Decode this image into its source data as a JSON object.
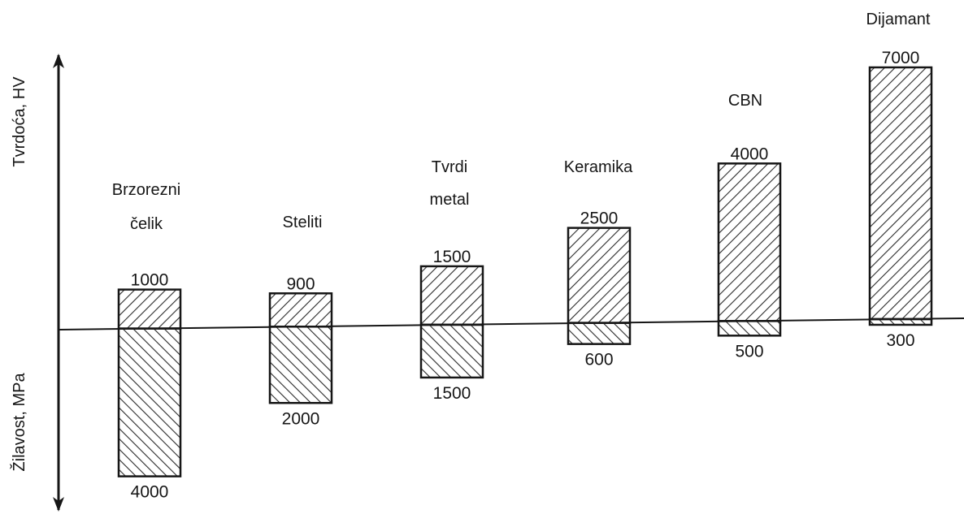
{
  "chart_data": {
    "type": "bar",
    "categories": [
      [
        "Brzorezni",
        "čelik"
      ],
      [
        "Steliti"
      ],
      [
        "Tvrdi",
        "metal"
      ],
      [
        "Keramika"
      ],
      [
        "CBN"
      ],
      [
        "Dijamant"
      ]
    ],
    "series": [
      {
        "name": "Tvrdoća, HV",
        "values": [
          1000,
          900,
          1500,
          2500,
          4000,
          7000
        ]
      },
      {
        "name": "Žilavost, MPa",
        "values": [
          4000,
          2000,
          1500,
          600,
          500,
          300
        ]
      }
    ],
    "value_labels_top": [
      "1000",
      "900",
      "1500",
      "2500",
      "4000",
      "7000"
    ],
    "value_labels_bottom": [
      "4000",
      "2000",
      "1500",
      "600",
      "500",
      "300"
    ],
    "ylabel_top": "Tvrdoća, HV",
    "ylabel_bottom": "Žilavost, MPa",
    "colors": {
      "ink": "#161616",
      "hatch": "#2a2a2a",
      "background": "#ffffff"
    }
  }
}
